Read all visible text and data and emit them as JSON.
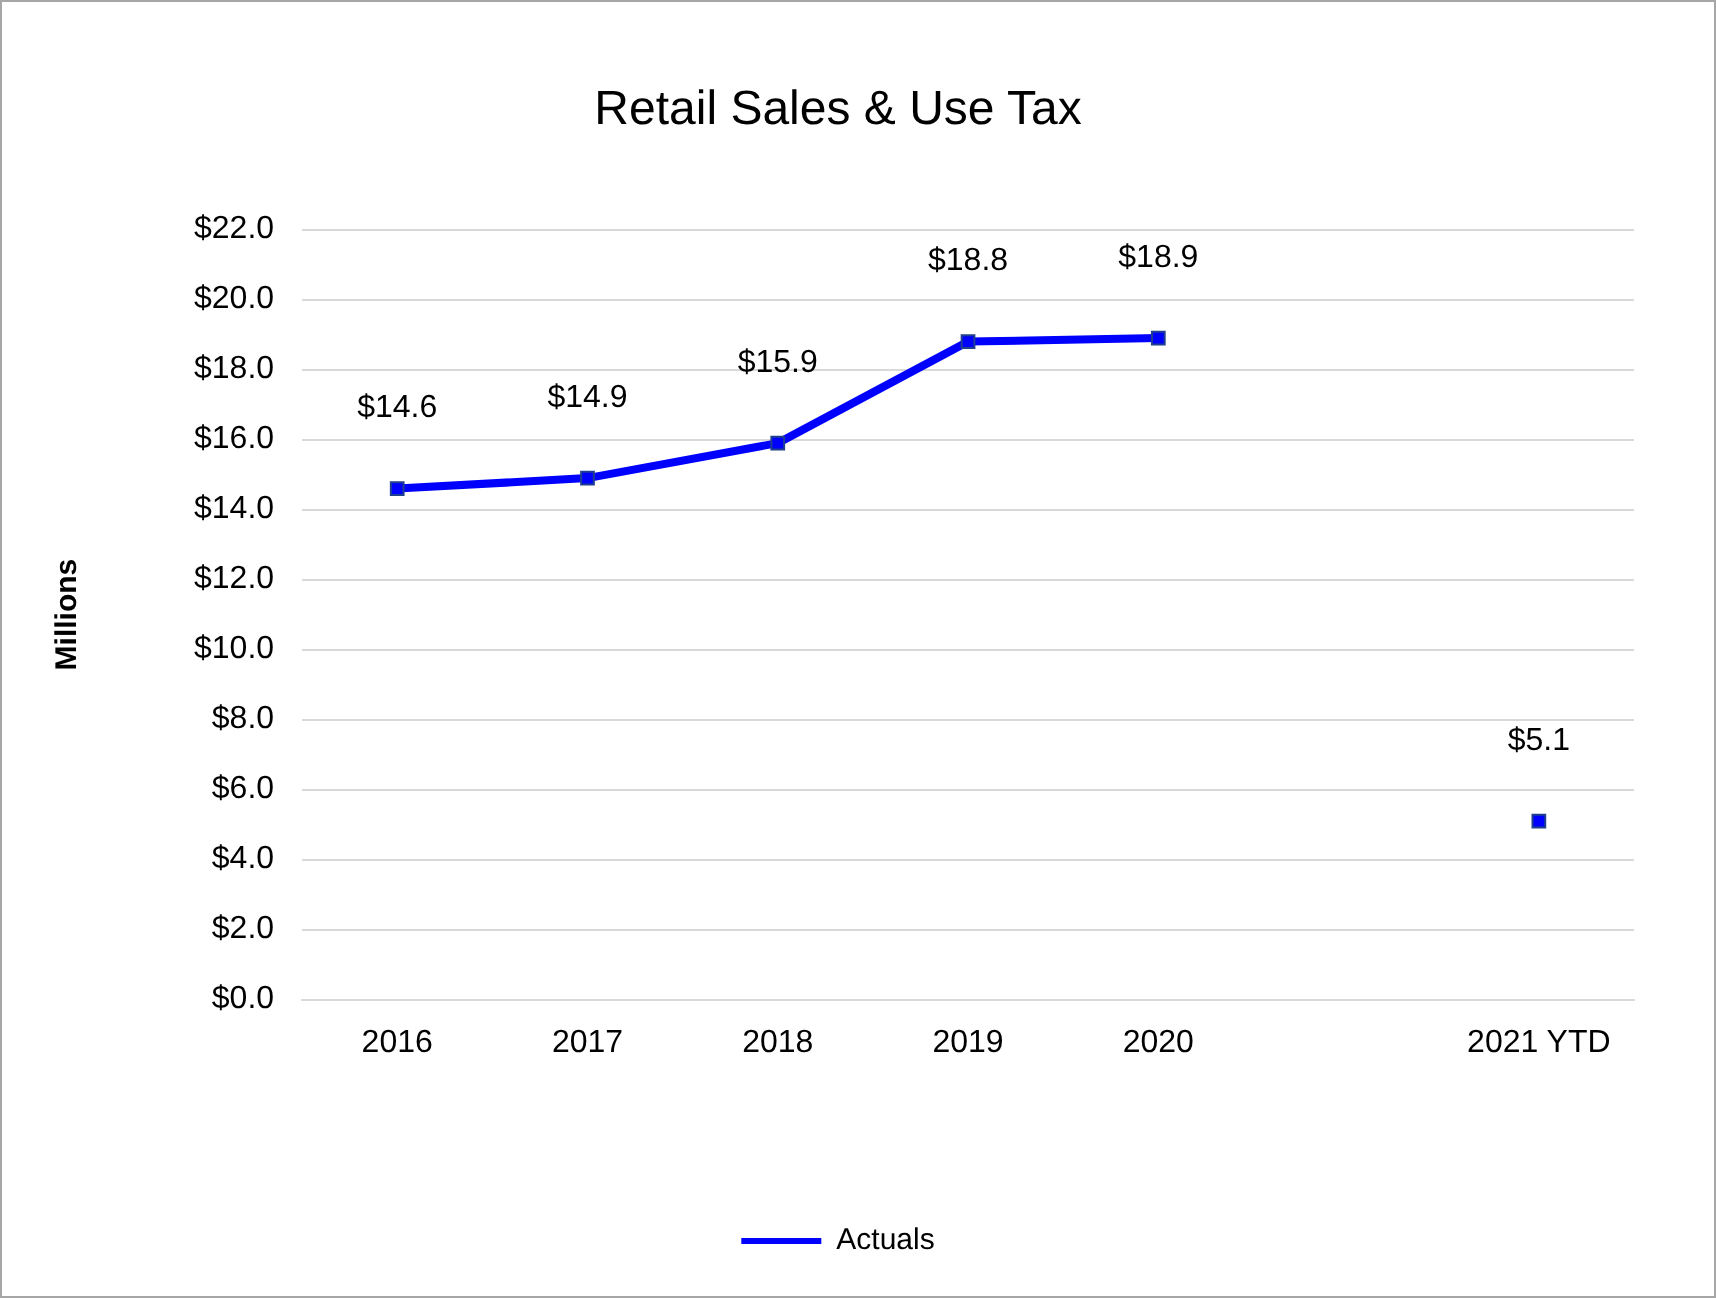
{
  "chart_data": {
    "type": "line",
    "title": "Retail Sales & Use Tax",
    "ylabel": "Millions",
    "categories": [
      "2016",
      "2017",
      "2018",
      "2019",
      "2020",
      null,
      "2021 YTD"
    ],
    "series": [
      {
        "name": "Actuals",
        "color": "#0000ff",
        "values": [
          14.6,
          14.9,
          15.9,
          18.8,
          18.9,
          null,
          5.1
        ],
        "value_labels": [
          "$14.6",
          "$14.9",
          "$15.9",
          "$18.8",
          "$18.9",
          null,
          "$5.1"
        ]
      }
    ],
    "ylim": [
      0,
      22
    ],
    "yticks": [
      {
        "value": 0,
        "label": "$0.0"
      },
      {
        "value": 2,
        "label": "$2.0"
      },
      {
        "value": 4,
        "label": "$4.0"
      },
      {
        "value": 6,
        "label": "$6.0"
      },
      {
        "value": 8,
        "label": "$8.0"
      },
      {
        "value": 10,
        "label": "$10.0"
      },
      {
        "value": 12,
        "label": "$12.0"
      },
      {
        "value": 14,
        "label": "$14.0"
      },
      {
        "value": 16,
        "label": "$16.0"
      },
      {
        "value": 18,
        "label": "$18.0"
      },
      {
        "value": 20,
        "label": "$20.0"
      },
      {
        "value": 22,
        "label": "$22.0"
      }
    ],
    "grid": "y",
    "legend": "bottom",
    "marker": "square",
    "line_style": "solid"
  }
}
